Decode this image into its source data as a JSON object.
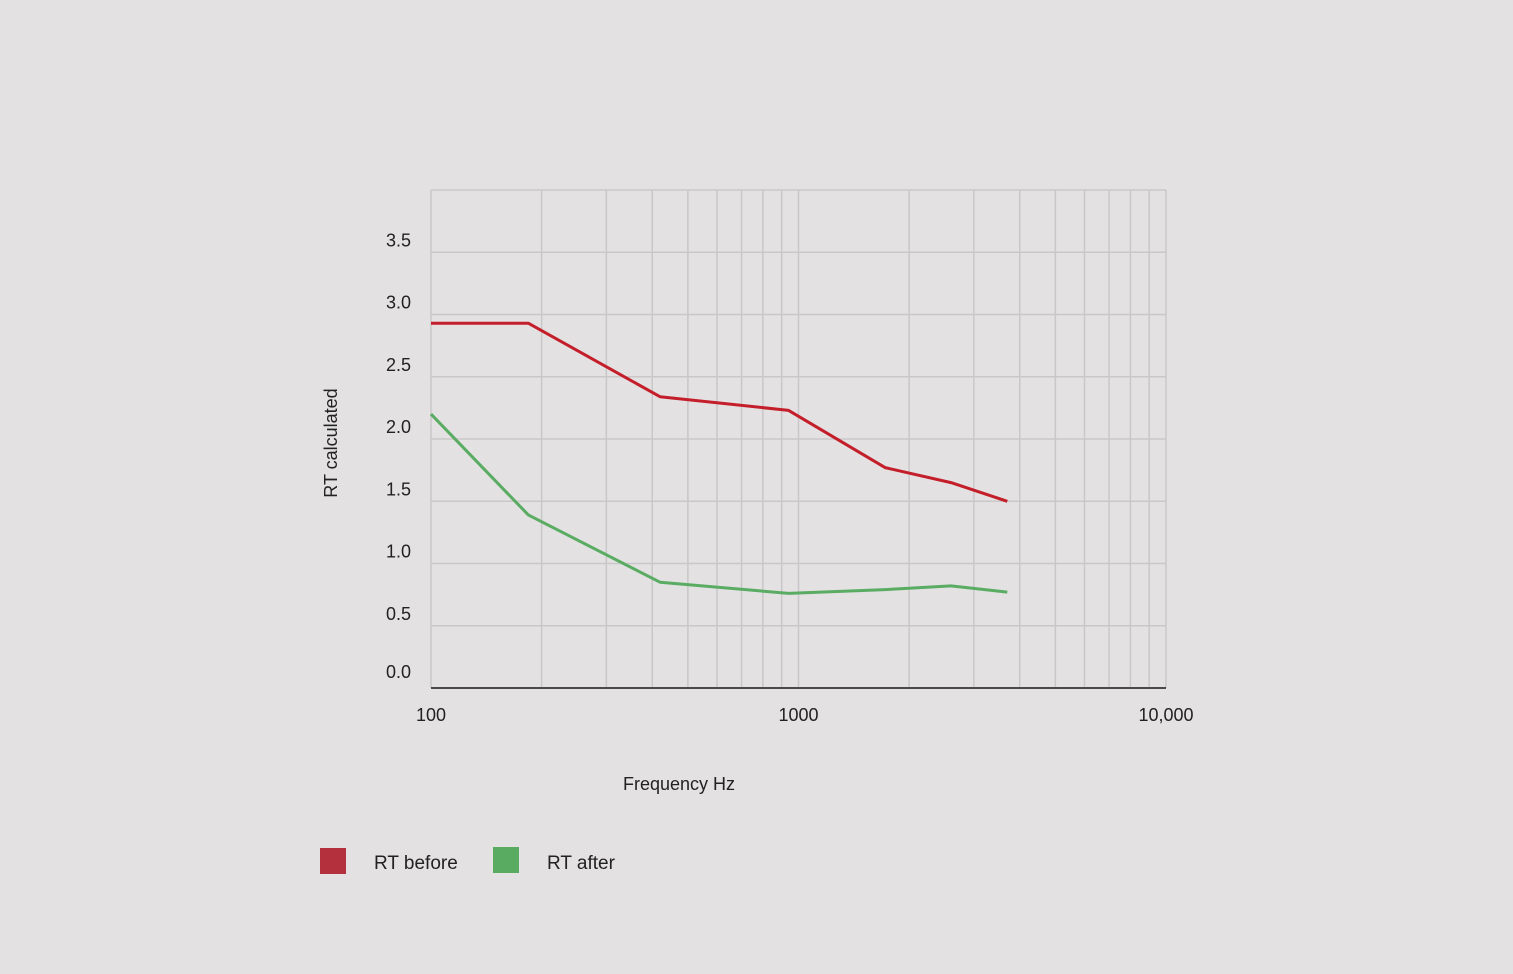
{
  "chart_data": {
    "type": "line",
    "xscale": "log",
    "xlim": [
      100,
      10000
    ],
    "ylim": [
      0,
      4
    ],
    "x_ticks": [
      100,
      1000,
      10000
    ],
    "x_tick_labels": [
      "100",
      "1000",
      "10,000"
    ],
    "y_ticks": [
      0,
      0.5,
      1,
      1.5,
      2,
      2.5,
      3,
      3.5
    ],
    "y_tick_labels": [
      "0.0",
      "0.5",
      "1.0",
      "1.5",
      "2.0",
      "2.5",
      "3.0",
      "3.5"
    ],
    "xlabel": "Frequency Hz",
    "ylabel": "RT calculated",
    "grid": true,
    "legend_position": "bottom-left",
    "series": [
      {
        "name": "RT before",
        "color": "#c41e2a",
        "legend_color": "#b3303c",
        "x": [
          100,
          184,
          420,
          940,
          1720,
          2600,
          3700
        ],
        "y": [
          2.93,
          2.93,
          2.34,
          2.23,
          1.77,
          1.65,
          1.5
        ]
      },
      {
        "name": "RT after",
        "color": "#5aac63",
        "legend_color": "#59ab62",
        "x": [
          100,
          184,
          420,
          940,
          1720,
          2600,
          3700
        ],
        "y": [
          2.2,
          1.39,
          0.85,
          0.76,
          0.79,
          0.82,
          0.77
        ]
      }
    ]
  }
}
